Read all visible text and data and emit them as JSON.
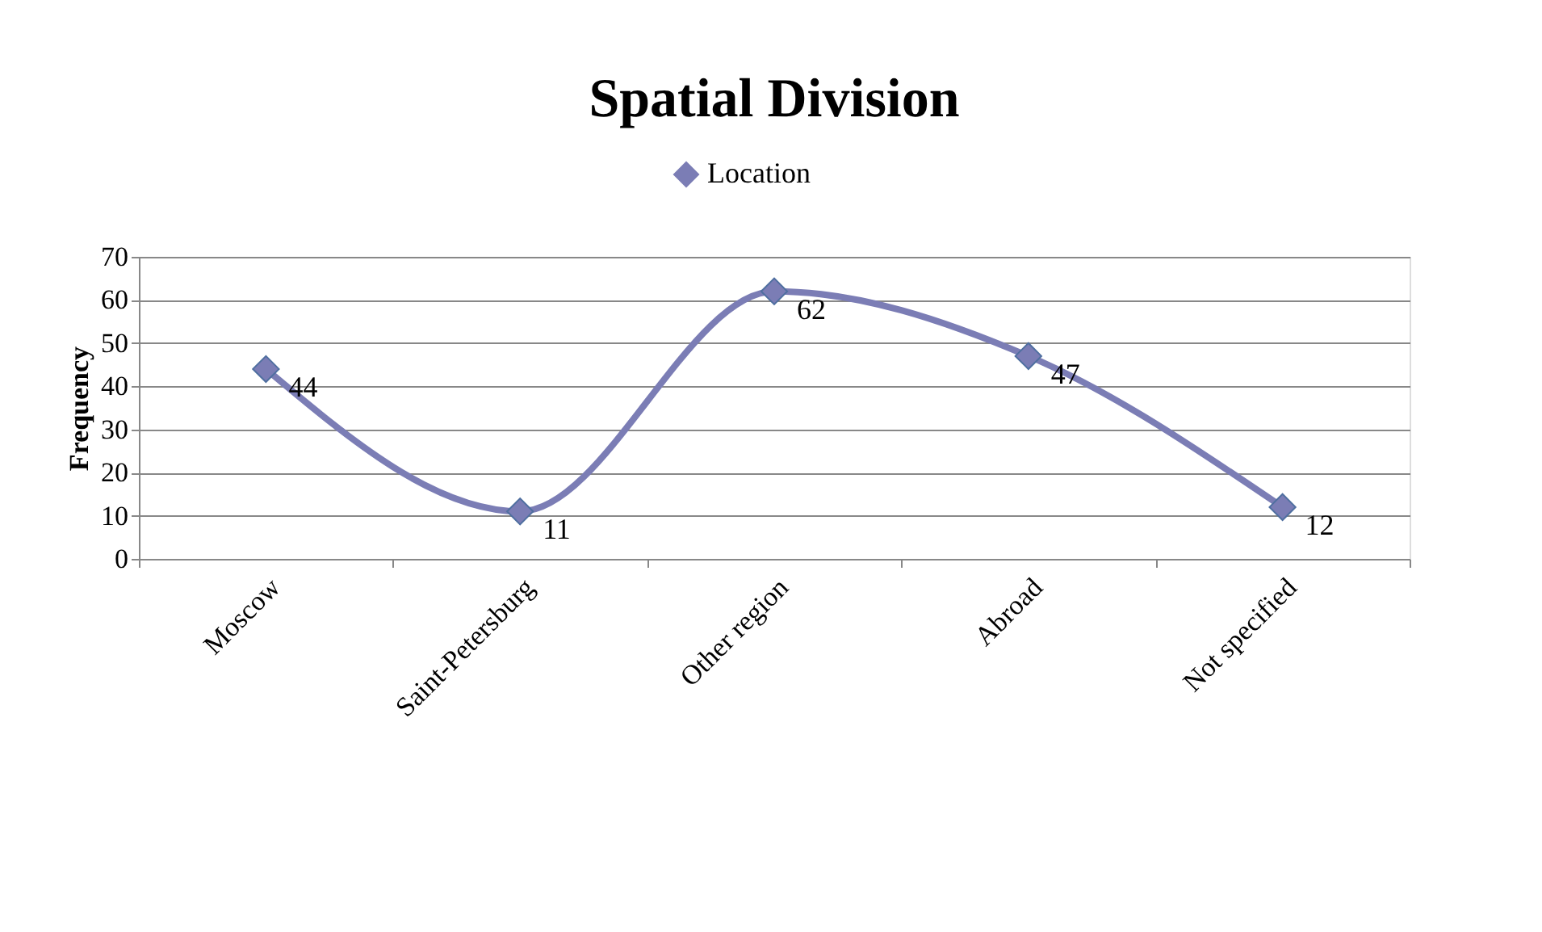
{
  "chart_data": {
    "type": "line",
    "title": "Spatial Division",
    "ylabel": "Frequency",
    "categories": [
      "Moscow",
      "Saint-Petersburg",
      "Other region",
      "Abroad",
      "Not specified"
    ],
    "series": [
      {
        "name": "Location",
        "color": "#7b7db5",
        "values": [
          44,
          11,
          62,
          47,
          12
        ]
      }
    ],
    "ylim": [
      0,
      70
    ],
    "yticks": [
      0,
      10,
      20,
      30,
      40,
      50,
      60,
      70
    ],
    "grid": "y",
    "legend": "top",
    "marker": "diamond",
    "line_style": "solid",
    "data_labels": true
  }
}
